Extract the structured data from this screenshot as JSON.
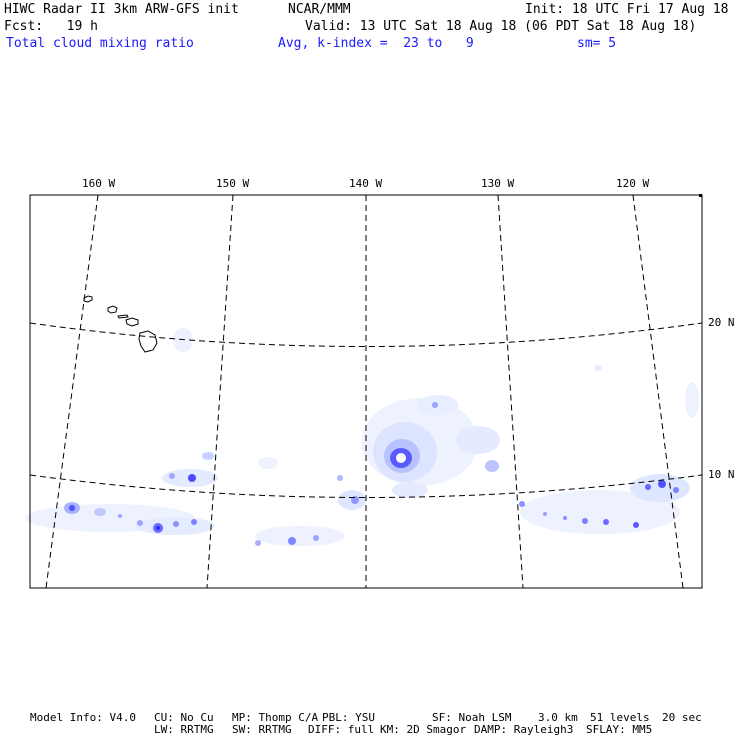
{
  "header": {
    "title": "HIWC Radar II 3km ARW-GFS init",
    "source": "NCAR/MMM",
    "init": "Init: 18 UTC Fri 17 Aug 18",
    "fcst": "Fcst:   19 h",
    "valid": "Valid: 13 UTC Sat 18 Aug 18 (06 PDT Sat 18 Aug 18)",
    "field": "Total cloud mixing ratio",
    "avg": "Avg, k-index =  23 to   9",
    "smooth": "sm= 5"
  },
  "map": {
    "lon_labels": [
      "160 W",
      "150 W",
      "140 W",
      "130 W",
      "120 W"
    ],
    "lat_labels": [
      "20 N",
      "10 N"
    ],
    "colors": {
      "cloud_light": "#e6ecff",
      "cloud_mid": "#b4beff",
      "cloud_dark": "#3c3cff",
      "eye": "#ffffff"
    }
  },
  "footer": {
    "line1": [
      "Model Info: V4.0",
      "CU: No Cu",
      "MP: Thomp C/A",
      "PBL: YSU",
      "SF: Noah LSM",
      "3.0 km",
      "51 levels",
      "20 sec"
    ],
    "line2": [
      "LW: RRTMG",
      "SW: RRTMG",
      "DIFF: full",
      "KM: 2D Smagor",
      "DAMP: Rayleigh3",
      "SFLAY: MM5"
    ]
  }
}
